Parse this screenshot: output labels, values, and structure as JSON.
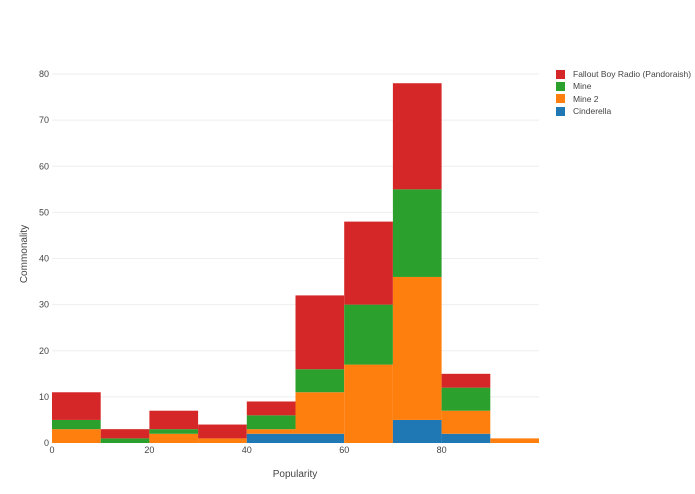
{
  "chart_data": {
    "type": "bar",
    "subtype": "stacked-histogram",
    "title": "",
    "xlabel": "Popularity",
    "ylabel": "Commonality",
    "xlim": [
      0,
      100
    ],
    "ylim": [
      0,
      80
    ],
    "bin_edges": [
      0,
      10,
      20,
      30,
      40,
      50,
      60,
      70,
      80,
      90,
      100
    ],
    "x_ticks": [
      0,
      20,
      40,
      60,
      80
    ],
    "y_ticks": [
      0,
      10,
      20,
      30,
      40,
      50,
      60,
      70,
      80
    ],
    "grid": true,
    "legend_position": "right",
    "series": [
      {
        "name": "Cinderella",
        "color": "#1f77b4",
        "values": [
          0,
          0,
          0,
          0,
          2,
          2,
          0,
          5,
          2,
          0
        ]
      },
      {
        "name": "Mine 2",
        "color": "#ff7f0e",
        "values": [
          3,
          0,
          2,
          1,
          1,
          9,
          17,
          31,
          5,
          1
        ]
      },
      {
        "name": "Mine",
        "color": "#2ca02c",
        "values": [
          2,
          1,
          1,
          0,
          3,
          5,
          13,
          19,
          5,
          0
        ]
      },
      {
        "name": "Fallout Boy Radio (Pandoraish)",
        "color": "#d62728",
        "values": [
          6,
          2,
          4,
          3,
          3,
          16,
          18,
          23,
          3,
          0
        ]
      }
    ]
  },
  "legend": {
    "items": [
      {
        "label": "Fallout Boy Radio (Pandoraish)",
        "color": "#d62728"
      },
      {
        "label": "Mine",
        "color": "#2ca02c"
      },
      {
        "label": "Mine 2",
        "color": "#ff7f0e"
      },
      {
        "label": "Cinderella",
        "color": "#1f77b4"
      }
    ]
  }
}
